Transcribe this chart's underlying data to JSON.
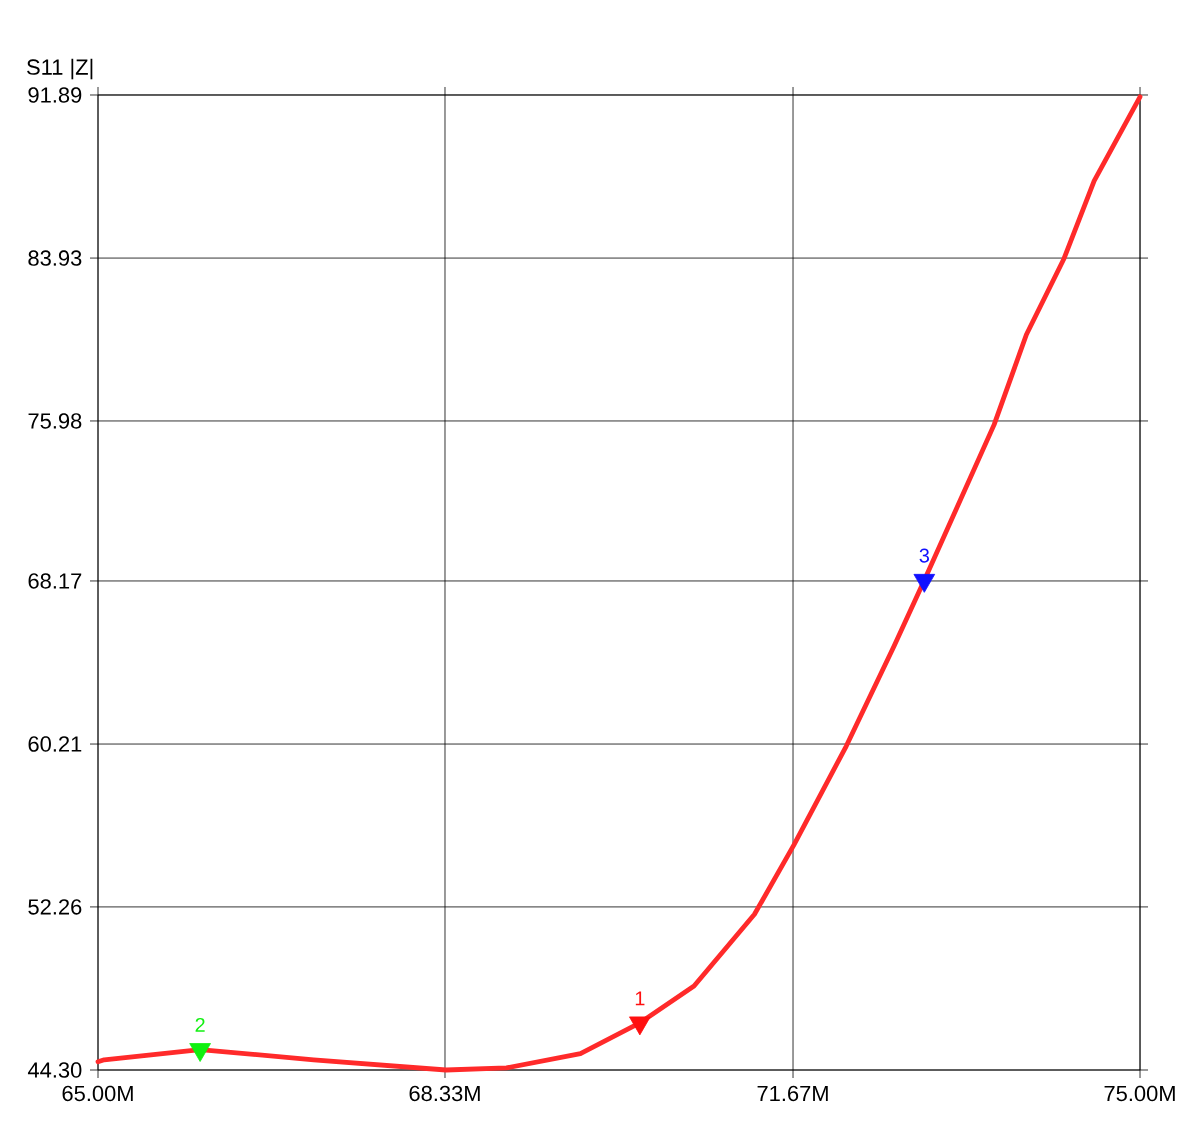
{
  "chart_data": {
    "type": "line",
    "ylabel": "S11 |Z|",
    "xlim": [
      65,
      75
    ],
    "ylim": [
      44.3,
      91.89
    ],
    "xticks": [
      {
        "value": 65,
        "label": "65.00M"
      },
      {
        "value": 68.33,
        "label": "68.33M"
      },
      {
        "value": 71.67,
        "label": "71.67M"
      },
      {
        "value": 75,
        "label": "75.00M"
      }
    ],
    "yticks": [
      {
        "value": 44.3,
        "label": "44.30"
      },
      52.26,
      60.21,
      68.17,
      75.98,
      83.93,
      91.89
    ],
    "grid": true,
    "series": [
      {
        "color": "#ff2a2a",
        "x": [
          65.0,
          65.06,
          65.98,
          67.07,
          68.34,
          68.92,
          69.63,
          70.2,
          70.72,
          71.3,
          71.68,
          72.18,
          72.64,
          72.93,
          73.6,
          73.91,
          74.27,
          74.56,
          75.0
        ],
        "values": [
          44.7,
          44.8,
          45.3,
          44.8,
          44.3,
          44.4,
          45.1,
          46.6,
          48.4,
          51.9,
          55.3,
          60.1,
          65.0,
          68.2,
          75.8,
          80.2,
          83.9,
          87.7,
          91.8
        ]
      },
      {
        "type": "scatter",
        "marker": "triangle",
        "color": "#ff1010",
        "x": [
          70.2
        ],
        "values": [
          46.6
        ]
      },
      {
        "type": "scatter",
        "marker": "triangle",
        "color": "#10f010",
        "x": [
          65.98
        ],
        "values": [
          45.3
        ]
      },
      {
        "type": "scatter",
        "marker": "triangle",
        "color": "#1010ff",
        "x": [
          72.93
        ],
        "values": [
          68.2
        ]
      }
    ],
    "annotations": [
      {
        "text": "1",
        "x": 70.2,
        "y": 46.6
      },
      {
        "text": "2",
        "x": 65.98,
        "y": 45.3
      },
      {
        "text": "3",
        "x": 72.93,
        "y": 68.2
      }
    ]
  }
}
